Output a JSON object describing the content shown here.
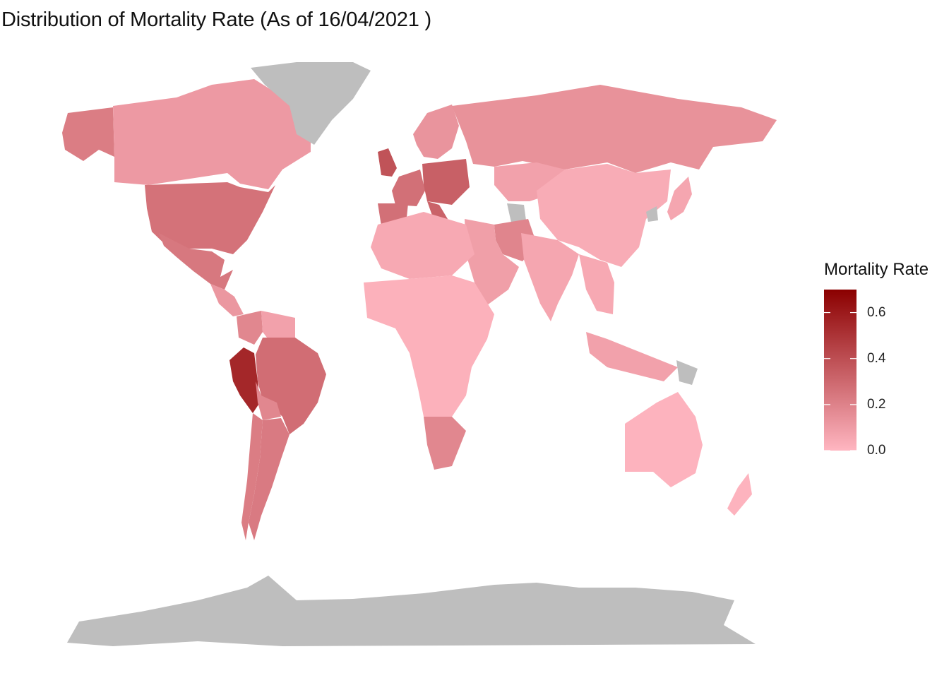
{
  "title": "Distribution of Mortality Rate (As of 16/04/2021 )",
  "legend": {
    "title": "Mortality Rate",
    "ticks": [
      {
        "label": "0.6",
        "value": 0.6
      },
      {
        "label": "0.4",
        "value": 0.4
      },
      {
        "label": "0.2",
        "value": 0.2
      },
      {
        "label": "0.0",
        "value": 0.0
      }
    ],
    "min": 0.0,
    "max": 0.7,
    "low_color": "#ffb6c1",
    "high_color": "#8b0000"
  },
  "colors": {
    "no_data": "#bebebe",
    "background": "#ffffff"
  },
  "chart_data": {
    "type": "choropleth",
    "variable": "Mortality Rate",
    "scale": {
      "min": 0.0,
      "max": 0.7
    },
    "regions": [
      {
        "name": "Alaska",
        "value": 0.22
      },
      {
        "name": "Canada",
        "value": 0.11
      },
      {
        "name": "United States",
        "value": 0.26
      },
      {
        "name": "Mexico",
        "value": 0.24
      },
      {
        "name": "Central America",
        "value": 0.12
      },
      {
        "name": "Colombia",
        "value": 0.18
      },
      {
        "name": "Venezuela",
        "value": 0.08
      },
      {
        "name": "Peru",
        "value": 0.55
      },
      {
        "name": "Brazil",
        "value": 0.28
      },
      {
        "name": "Bolivia",
        "value": 0.18
      },
      {
        "name": "Argentina",
        "value": 0.23
      },
      {
        "name": "Chile",
        "value": 0.22
      },
      {
        "name": "Greenland",
        "value": null
      },
      {
        "name": "United Kingdom",
        "value": 0.38
      },
      {
        "name": "Western Europe",
        "value": 0.27
      },
      {
        "name": "Central Europe",
        "value": 0.33
      },
      {
        "name": "Scandinavia",
        "value": 0.13
      },
      {
        "name": "Spain",
        "value": 0.27
      },
      {
        "name": "Italy",
        "value": 0.32
      },
      {
        "name": "Russia",
        "value": 0.14
      },
      {
        "name": "Kazakhstan",
        "value": 0.08
      },
      {
        "name": "Turkmenistan",
        "value": null
      },
      {
        "name": "Iran",
        "value": 0.19
      },
      {
        "name": "Middle East",
        "value": 0.09
      },
      {
        "name": "China",
        "value": 0.04
      },
      {
        "name": "North Korea",
        "value": null
      },
      {
        "name": "India",
        "value": 0.06
      },
      {
        "name": "Southeast Asia",
        "value": 0.05
      },
      {
        "name": "Indonesia",
        "value": 0.08
      },
      {
        "name": "Papua New Guinea",
        "value": null
      },
      {
        "name": "North Africa",
        "value": 0.05
      },
      {
        "name": "Sub-Saharan Africa",
        "value": 0.02
      },
      {
        "name": "South Africa",
        "value": 0.18
      },
      {
        "name": "Australia",
        "value": 0.01
      },
      {
        "name": "New Zealand",
        "value": 0.01
      },
      {
        "name": "Japan",
        "value": 0.06
      },
      {
        "name": "Antarctica",
        "value": null
      }
    ]
  }
}
